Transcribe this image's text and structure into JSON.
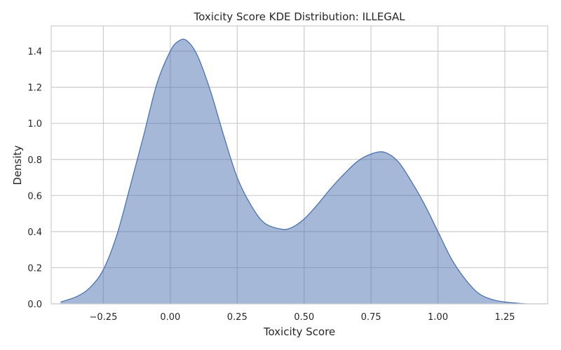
{
  "chart_data": {
    "type": "area",
    "title": "Toxicity Score KDE Distribution: ILLEGAL",
    "xlabel": "Toxicity Score",
    "ylabel": "Density",
    "xlim": [
      -0.445,
      1.41
    ],
    "ylim": [
      0,
      1.54
    ],
    "x_ticks": [
      -0.25,
      0.0,
      0.25,
      0.5,
      0.75,
      1.0,
      1.25
    ],
    "x_tick_labels": [
      "−0.25",
      "0.00",
      "0.25",
      "0.50",
      "0.75",
      "1.00",
      "1.25"
    ],
    "y_ticks": [
      0.0,
      0.2,
      0.4,
      0.6,
      0.8,
      1.0,
      1.2,
      1.4
    ],
    "y_tick_labels": [
      "0.0",
      "0.2",
      "0.4",
      "0.6",
      "0.8",
      "1.0",
      "1.2",
      "1.4"
    ],
    "grid": true,
    "fill_color": "#4c72b0",
    "fill_opacity": 0.5,
    "line_color": "#4c72b0",
    "series": [
      {
        "x": [
          -0.41,
          -0.35,
          -0.3,
          -0.25,
          -0.2,
          -0.15,
          -0.1,
          -0.05,
          0.0,
          0.03,
          0.06,
          0.1,
          0.15,
          0.2,
          0.25,
          0.3,
          0.35,
          0.41,
          0.45,
          0.5,
          0.55,
          0.6,
          0.65,
          0.7,
          0.75,
          0.8,
          0.85,
          0.9,
          0.95,
          1.0,
          1.05,
          1.1,
          1.15,
          1.2,
          1.25,
          1.3,
          1.33
        ],
        "y": [
          0.01,
          0.04,
          0.09,
          0.19,
          0.38,
          0.65,
          0.93,
          1.22,
          1.4,
          1.455,
          1.46,
          1.38,
          1.18,
          0.93,
          0.7,
          0.55,
          0.45,
          0.415,
          0.42,
          0.47,
          0.55,
          0.64,
          0.72,
          0.79,
          0.83,
          0.84,
          0.79,
          0.68,
          0.55,
          0.4,
          0.25,
          0.14,
          0.06,
          0.025,
          0.01,
          0.003,
          0.0
        ]
      }
    ]
  }
}
